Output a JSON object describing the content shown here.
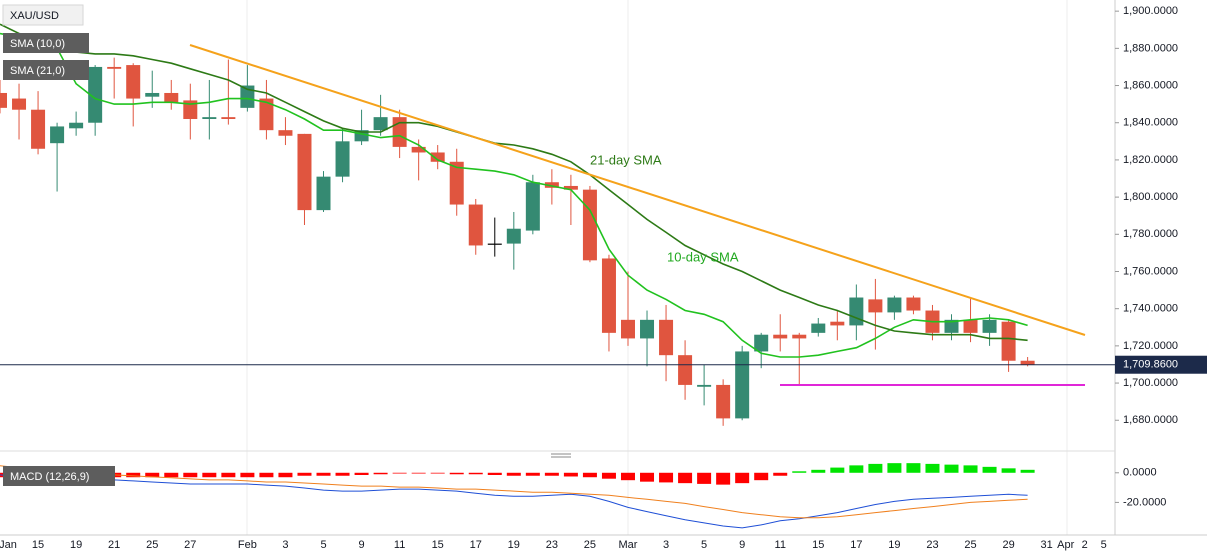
{
  "chart_data": [
    {
      "type": "candlestick",
      "title": "XAU/USD",
      "categories": [
        "Jan",
        null,
        "15",
        null,
        "19",
        null,
        "21",
        null,
        "25",
        null,
        "27",
        null,
        null,
        "Feb",
        null,
        "3",
        null,
        "5",
        null,
        "9",
        null,
        "11",
        null,
        "15",
        null,
        "17",
        null,
        "19",
        null,
        "23",
        null,
        "25",
        null,
        "Mar",
        null,
        "3",
        null,
        "5",
        null,
        "9",
        null,
        "11",
        null,
        "15",
        null,
        "17",
        null,
        "19",
        null,
        "23",
        null,
        "25",
        null,
        "29",
        null,
        "31",
        "Apr",
        "2",
        "5"
      ],
      "open": [
        1856,
        1853,
        1847,
        1829,
        1837,
        1840,
        1870,
        1871,
        1854,
        1856,
        1852,
        1842,
        1843,
        1848,
        1853,
        1836,
        1834,
        1793,
        1811,
        1830,
        1836,
        1843,
        1827,
        1824,
        1819,
        1796,
        1775,
        1775,
        1782,
        1808,
        1806,
        1804,
        1767,
        1734,
        1724,
        1734,
        1715,
        1698,
        1699,
        1681,
        1717,
        1726,
        1726,
        1727,
        1733,
        1731,
        1745,
        1738,
        1746,
        1739,
        1727,
        1734,
        1727,
        1733,
        1712,
        null,
        null,
        null,
        null
      ],
      "high": [
        1863,
        1861,
        1857,
        1840,
        1846,
        1871,
        1875,
        1872,
        1868,
        1863,
        1861,
        1863,
        1874,
        1871,
        1863,
        1843,
        1834,
        1814,
        1837,
        1847,
        1855,
        1847,
        1831,
        1828,
        1826,
        1799,
        1789,
        1792,
        1812,
        1815,
        1812,
        1806,
        1769,
        1760,
        1739,
        1742,
        1723,
        1710,
        1702,
        1720,
        1727,
        1737,
        1727,
        1735,
        1739,
        1753,
        1756,
        1747,
        1747,
        1742,
        1737,
        1746,
        1737,
        1734,
        1714,
        null,
        null,
        null,
        null
      ],
      "low": [
        1845,
        1831,
        1823,
        1803,
        1833,
        1833,
        1853,
        1838,
        1848,
        1847,
        1831,
        1831,
        1839,
        1846,
        1831,
        1828,
        1785,
        1792,
        1808,
        1828,
        1833,
        1821,
        1809,
        1815,
        1790,
        1769,
        1768,
        1761,
        1780,
        1796,
        1785,
        1765,
        1717,
        1720,
        1709,
        1701,
        1691,
        1688,
        1677,
        1680,
        1708,
        1717,
        1699,
        1725,
        1723,
        1723,
        1718,
        1734,
        1737,
        1723,
        1723,
        1722,
        1720,
        1706,
        1709,
        null,
        null,
        null,
        null
      ],
      "close": [
        1848,
        1847,
        1826,
        1838,
        1840,
        1870,
        1869,
        1853,
        1856,
        1851,
        1842,
        1843,
        1842,
        1860,
        1836,
        1833,
        1793,
        1811,
        1830,
        1836,
        1843,
        1827,
        1824,
        1819,
        1796,
        1774,
        1775,
        1783,
        1808,
        1805,
        1804,
        1766,
        1727,
        1724,
        1734,
        1715,
        1699,
        1699,
        1681,
        1717,
        1726,
        1724,
        1724,
        1732,
        1731,
        1746,
        1738,
        1746,
        1739,
        1727,
        1734,
        1727,
        1734,
        1712,
        1709.86,
        null,
        null,
        null,
        null
      ],
      "colors": {
        "up": "#358a72",
        "down": "#e0553f",
        "unchanged": "#000000"
      },
      "series": [
        {
          "name": "SMA (10,0)",
          "color": "#21c21f",
          "values": [
            1888,
            1886,
            1885,
            1880,
            1861,
            1853,
            1850,
            1850,
            1851,
            1851,
            1850,
            1851,
            1853,
            1853,
            1851,
            1847,
            1842,
            1836,
            1836,
            1834,
            1832,
            1833,
            1828,
            1820,
            1816,
            1815,
            1814,
            1812,
            1808,
            1806,
            1804,
            1793,
            1772,
            1758,
            1750,
            1745,
            1739,
            1737,
            1733,
            1723,
            1716,
            1714,
            1714,
            1715,
            1717,
            1719,
            1724,
            1730,
            1734,
            1733,
            1733,
            1734,
            1735,
            1734,
            1731,
            null,
            null,
            null,
            null
          ]
        },
        {
          "name": "SMA (21,0)",
          "color": "#2d7a16",
          "values": [
            1893,
            1888,
            1886,
            1882,
            1878,
            1877,
            1877,
            1876,
            1874,
            1872,
            1869,
            1866,
            1863,
            1858,
            1856,
            1851,
            1846,
            1841,
            1837,
            1835,
            1835,
            1840,
            1840,
            1838,
            1835,
            1832,
            1829,
            1828,
            1826,
            1823,
            1819,
            1812,
            1804,
            1796,
            1788,
            1781,
            1774,
            1769,
            1764,
            1760,
            1755,
            1750,
            1746,
            1742,
            1739,
            1735,
            1731,
            1728,
            1727,
            1726,
            1726,
            1726,
            1724,
            1724,
            1723,
            null,
            null,
            null,
            null
          ]
        }
      ],
      "annotations": [
        "21-day SMA",
        "10-day SMA"
      ],
      "last_price": {
        "value": 1709.86,
        "label": "1,709.8600"
      },
      "ylim": [
        1664,
        1906
      ],
      "yticks": [
        {
          "value": 1900,
          "label": "1,900.0000"
        },
        {
          "value": 1880,
          "label": "1,880.0000"
        },
        {
          "value": 1860,
          "label": "1,860.0000"
        },
        {
          "value": 1840,
          "label": "1,840.0000"
        },
        {
          "value": 1820,
          "label": "1,820.0000"
        },
        {
          "value": 1800,
          "label": "1,800.0000"
        },
        {
          "value": 1780,
          "label": "1,780.0000"
        },
        {
          "value": 1760,
          "label": "1,760.0000"
        },
        {
          "value": 1740,
          "label": "1,740.0000"
        },
        {
          "value": 1720,
          "label": "1,720.0000"
        },
        {
          "value": 1700,
          "label": "1,700.0000"
        },
        {
          "value": 1680,
          "label": "1,680.0000"
        }
      ]
    },
    {
      "type": "macd",
      "title": "MACD (12,26,9)",
      "histogram": {
        "type": "bar",
        "colors": {
          "positive": "#00e400",
          "negative": "#ff0000"
        },
        "values": [
          -3,
          -3,
          -3,
          -3,
          -3,
          -3,
          -3,
          -3,
          -3,
          -3,
          -3,
          -3,
          -3,
          -3,
          -3,
          -3,
          -2,
          -2,
          -2,
          -1.5,
          -1,
          -0.5,
          -0.5,
          -0.5,
          -1,
          -1,
          -1.5,
          -2,
          -2,
          -2,
          -2.5,
          -3,
          -4,
          -5,
          -6,
          -6.5,
          -7,
          -7.5,
          -8,
          -7,
          -5,
          -2,
          1,
          2,
          3.5,
          5,
          6,
          6.5,
          6.5,
          6,
          5.5,
          5,
          4,
          3,
          2,
          null,
          null,
          null,
          null
        ]
      },
      "series": [
        {
          "color": "#1f4fd6",
          "values": [
            -1.4,
            -2.8,
            -4.1,
            -5.5,
            -6.2,
            -5.5,
            -4.8,
            -5.5,
            -6.2,
            -6.9,
            -7.6,
            -7.6,
            -7.6,
            -7.6,
            -8.3,
            -9.0,
            -10.3,
            -11.7,
            -12.4,
            -12.4,
            -11.7,
            -11.0,
            -11.0,
            -11.7,
            -12.4,
            -13.8,
            -15.2,
            -15.9,
            -15.9,
            -15.2,
            -14.5,
            -15.9,
            -19.3,
            -23.4,
            -26.2,
            -29.0,
            -31.7,
            -33.8,
            -35.9,
            -37.2,
            -35.2,
            -32.4,
            -31.0,
            -29.0,
            -26.9,
            -24.1,
            -21.4,
            -19.3,
            -17.9,
            -17.2,
            -16.6,
            -15.9,
            -15.2,
            -14.5,
            -15.2,
            null,
            null,
            null,
            null
          ]
        },
        {
          "color": "#f0801e",
          "values": [
            4.8,
            3.4,
            2.1,
            1.4,
            0,
            -0.7,
            -1.4,
            -2.1,
            -2.8,
            -3.4,
            -4.1,
            -4.8,
            -4.8,
            -5.5,
            -6.2,
            -6.2,
            -6.9,
            -7.6,
            -8.3,
            -9.0,
            -9.0,
            -9.7,
            -9.7,
            -10.3,
            -11.0,
            -11.0,
            -11.7,
            -12.4,
            -13.1,
            -13.1,
            -13.8,
            -14.5,
            -15.2,
            -16.6,
            -17.9,
            -19.3,
            -20.7,
            -22.8,
            -24.8,
            -26.9,
            -28.3,
            -29.7,
            -30.3,
            -30.3,
            -29.7,
            -28.3,
            -26.9,
            -25.5,
            -24.1,
            -22.8,
            -21.4,
            -20.0,
            -19.3,
            -18.6,
            -17.9,
            null,
            null,
            null,
            null
          ]
        }
      ],
      "ylim": [
        -42,
        12
      ],
      "yticks": [
        {
          "value": 0,
          "label": "0.0000"
        },
        {
          "value": -20,
          "label": "-20.0000"
        }
      ]
    }
  ]
}
